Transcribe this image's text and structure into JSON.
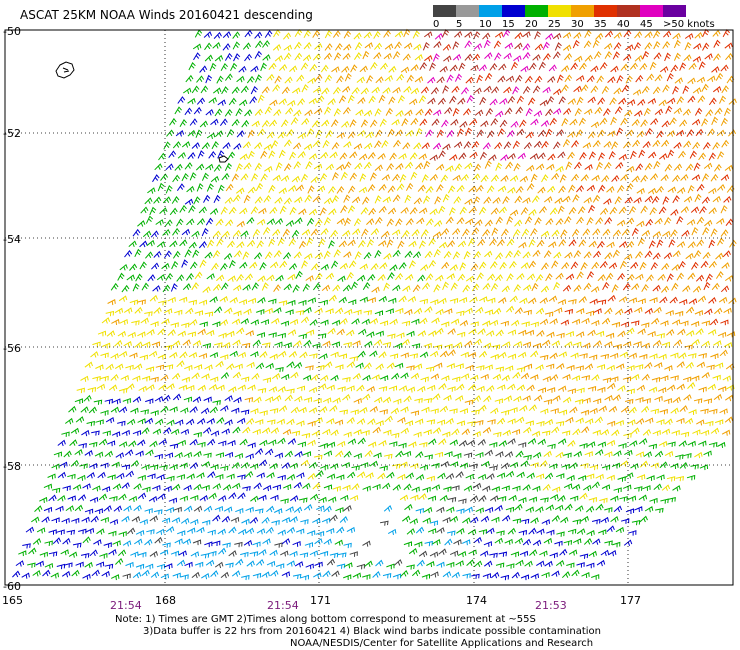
{
  "title": "ASCAT 25KM NOAA Winds 20160421 descending",
  "legend": {
    "bins": [
      {
        "label": "0",
        "color": "#444444"
      },
      {
        "label": "5",
        "color": "#999999"
      },
      {
        "label": "10",
        "color": "#00a0e8"
      },
      {
        "label": "15",
        "color": "#0000d0"
      },
      {
        "label": "20",
        "color": "#00b000"
      },
      {
        "label": "25",
        "color": "#f0e000"
      },
      {
        "label": "30",
        "color": "#f0a000"
      },
      {
        "label": "35",
        "color": "#e03000"
      },
      {
        "label": "40",
        "color": "#b03020"
      },
      {
        "label": "45",
        "color": "#e000c0"
      },
      {
        "label": ">50 knots",
        "color": "#6a00a0"
      }
    ]
  },
  "axes": {
    "lat_labels": [
      "-50",
      "-52",
      "-54",
      "-56",
      "-58",
      "-60"
    ],
    "lon_labels": [
      "165",
      "168",
      "171",
      "174",
      "177"
    ]
  },
  "pass_times": [
    "21:54",
    "21:54",
    "21:53"
  ],
  "notes": [
    "Note: 1) Times are GMT 2)Times along bottom correspond to measurement at ~55S",
    "3)Data buffer is 22 hrs from 20160421 4) Black wind barbs indicate possible contamination",
    "NOAA/NESDIS/Center for Satellite Applications and Research"
  ],
  "colors": {
    "frame": "#000000",
    "grid": "#000000",
    "island": "#000000"
  }
}
